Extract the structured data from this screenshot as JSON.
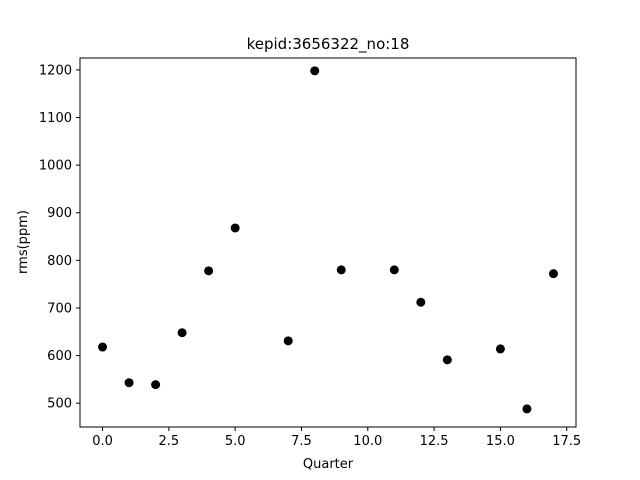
{
  "chart_data": {
    "type": "scatter",
    "title": "kepid:3656322_no:18",
    "xlabel": "Quarter",
    "ylabel": "rms(ppm)",
    "xlim": [
      -0.85,
      17.85
    ],
    "ylim": [
      450,
      1225
    ],
    "x_ticks": [
      0.0,
      2.5,
      5.0,
      7.5,
      10.0,
      12.5,
      15.0,
      17.5
    ],
    "x_tick_labels": [
      "0.0",
      "2.5",
      "5.0",
      "7.5",
      "10.0",
      "12.5",
      "15.0",
      "17.5"
    ],
    "y_ticks": [
      500,
      600,
      700,
      800,
      900,
      1000,
      1100,
      1200
    ],
    "y_tick_labels": [
      "500",
      "600",
      "700",
      "800",
      "900",
      "1000",
      "1100",
      "1200"
    ],
    "grid": false,
    "legend": "none",
    "marker_color": "#000000",
    "points": [
      {
        "x": 0,
        "y": 618
      },
      {
        "x": 1,
        "y": 543
      },
      {
        "x": 2,
        "y": 539
      },
      {
        "x": 3,
        "y": 648
      },
      {
        "x": 4,
        "y": 778
      },
      {
        "x": 5,
        "y": 868
      },
      {
        "x": 7,
        "y": 631
      },
      {
        "x": 8,
        "y": 1198
      },
      {
        "x": 9,
        "y": 780
      },
      {
        "x": 11,
        "y": 780
      },
      {
        "x": 12,
        "y": 712
      },
      {
        "x": 13,
        "y": 591
      },
      {
        "x": 15,
        "y": 614
      },
      {
        "x": 16,
        "y": 488
      },
      {
        "x": 17,
        "y": 772
      }
    ]
  }
}
